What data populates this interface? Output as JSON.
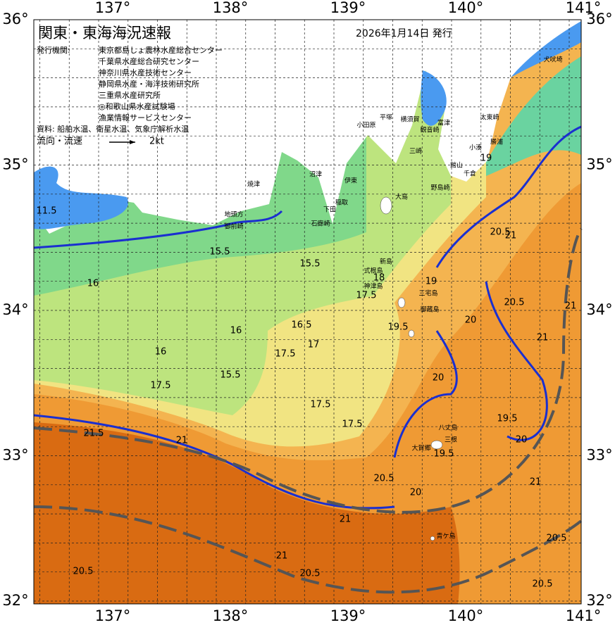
{
  "header": {
    "title": "関東・東海海況速報",
    "date": "2026年1月14日 発行"
  },
  "issuers": {
    "label": "発行機関:",
    "items": [
      "東京都島しょ農林水産総合センター",
      "千葉県水産総合研究センター",
      "神奈川県水産技術センター",
      "静岡県水産・海洋技術研究所",
      "三重県水産研究所",
      "◎和歌山県水産試験場",
      "漁業情報サービスセンター"
    ]
  },
  "source": "資料: 船舶水温、衛星水温、気象庁解析水温",
  "flow_legend": {
    "label": "流向・流速",
    "scale": "2kt"
  },
  "axes": {
    "lon_ticks": [
      {
        "value": 137,
        "label": "137°"
      },
      {
        "value": 138,
        "label": "138°"
      },
      {
        "value": 139,
        "label": "139°"
      },
      {
        "value": 140,
        "label": "140°"
      },
      {
        "value": 141,
        "label": "141°"
      }
    ],
    "lat_ticks": [
      {
        "value": 36,
        "label": "36°"
      },
      {
        "value": 35,
        "label": "35°"
      },
      {
        "value": 34,
        "label": "34°"
      },
      {
        "value": 33,
        "label": "33°"
      },
      {
        "value": 32,
        "label": "32°"
      }
    ]
  },
  "places": [
    "犬吠埼",
    "太東崎",
    "勝浦",
    "小湊",
    "館山",
    "千倉",
    "野島崎",
    "富津",
    "横須賀",
    "平塚",
    "小田原",
    "観音崎",
    "三崎",
    "伊東",
    "沼津",
    "焼津",
    "地頭方",
    "御前崎",
    "石廊崎",
    "下田",
    "稲取",
    "大島",
    "新島",
    "式根島",
    "神津島",
    "三宅島",
    "御蔵島",
    "八丈島",
    "三根",
    "大賀郷",
    "青ケ島"
  ],
  "contour_labels": [
    15.5,
    15.5,
    16,
    16,
    15.5,
    17.5,
    21.5,
    21,
    17.5,
    16.5,
    17,
    17.5,
    17.5,
    18,
    17.5,
    19.5,
    19,
    20,
    20,
    19.5,
    20.5,
    21,
    21,
    20.5,
    20.5,
    21,
    20.5,
    21,
    21,
    20.5,
    20.5,
    19.5,
    20,
    21,
    20,
    11.5,
    16,
    19,
    20.5
  ]
}
